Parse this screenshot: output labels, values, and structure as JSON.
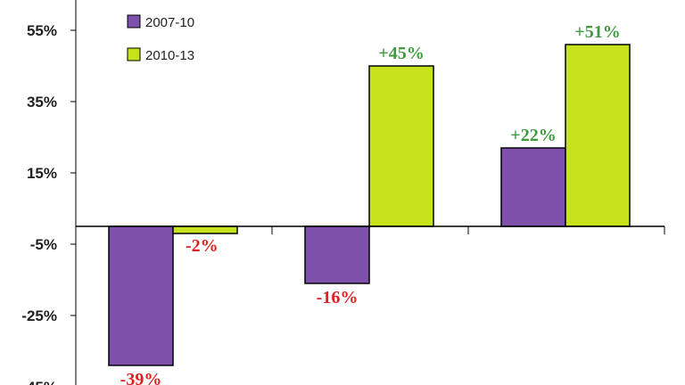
{
  "chart_data": {
    "type": "bar",
    "categories": [
      "",
      "",
      ""
    ],
    "series": [
      {
        "name": "2007-10",
        "color": "#7f4fac",
        "values": [
          -39,
          -16,
          22
        ],
        "labels": [
          "-39%",
          "-16%",
          "+22%"
        ]
      },
      {
        "name": "2010-13",
        "color": "#c6e21a",
        "values": [
          -2,
          45,
          51
        ],
        "labels": [
          "-2%",
          "+45%",
          "+51%"
        ]
      }
    ],
    "yticks": [
      55,
      35,
      15,
      -5,
      -25,
      -45
    ],
    "ytick_labels": [
      "55%",
      "35%",
      "15%",
      "-5%",
      "-25%",
      "-45%"
    ],
    "ylim": [
      -45,
      60
    ],
    "label_colors": {
      "positive": "#3e9a3e",
      "negative": "#e02020"
    },
    "grid": false,
    "legend": "top-left",
    "title": "",
    "xlabel": "",
    "ylabel": ""
  }
}
